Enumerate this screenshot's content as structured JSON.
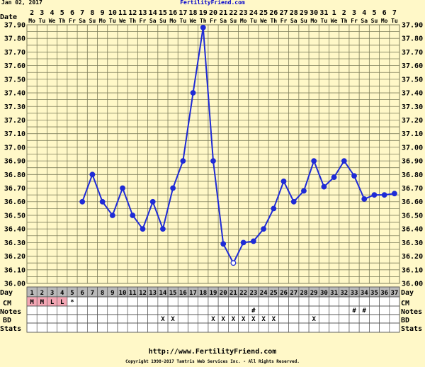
{
  "header": {
    "date_label": "Jan 02, 2017",
    "site_title": "FertilityFriend.com"
  },
  "footer": {
    "url": "http://www.FertilityFriend.com",
    "copyright": "Copyright 1998-2017 Tamtris Web Services Inc. - All Rights Reserved."
  },
  "colors": {
    "background": "#fff8c8",
    "grid": "#7d7d5a",
    "line": "#1f2bd6",
    "pink": "#f4a6b4",
    "dayrow": "#b9b9b9",
    "title": "#0000cc"
  },
  "chart_data": {
    "type": "line",
    "title": "",
    "xlabel": "Day",
    "ylabel": "",
    "row_labels": {
      "date": "Date",
      "day": "Day",
      "cm": "CM",
      "notes": "Notes",
      "bd": "BD",
      "stats": "Stats"
    },
    "dates": [
      "2",
      "3",
      "4",
      "5",
      "6",
      "7",
      "8",
      "9",
      "10",
      "11",
      "12",
      "13",
      "14",
      "15",
      "16",
      "17",
      "18",
      "19",
      "20",
      "21",
      "22",
      "23",
      "24",
      "25",
      "26",
      "27",
      "28",
      "29",
      "30",
      "31",
      "1",
      "2",
      "3",
      "4",
      "5",
      "6",
      "7"
    ],
    "weekdays": [
      "Mo",
      "Tu",
      "We",
      "Th",
      "Fr",
      "Sa",
      "Su",
      "Mo",
      "Tu",
      "We",
      "Th",
      "Fr",
      "Sa",
      "Su",
      "Mo",
      "Tu",
      "We",
      "Th",
      "Fr",
      "Sa",
      "Su",
      "Mo",
      "Tu",
      "We",
      "Th",
      "Fr",
      "Sa",
      "Su",
      "Mo",
      "Tu",
      "We",
      "Th",
      "Fr",
      "Sa",
      "Su",
      "Mo",
      "Tu"
    ],
    "days": [
      1,
      2,
      3,
      4,
      5,
      6,
      7,
      8,
      9,
      10,
      11,
      12,
      13,
      14,
      15,
      16,
      17,
      18,
      19,
      20,
      21,
      22,
      23,
      24,
      25,
      26,
      27,
      28,
      29,
      30,
      31,
      32,
      33,
      34,
      35,
      36,
      37
    ],
    "ylim": [
      36.0,
      37.9
    ],
    "y_ticks": [
      "37.90",
      "37.80",
      "37.70",
      "37.60",
      "37.50",
      "37.40",
      "37.30",
      "37.20",
      "37.10",
      "37.00",
      "36.90",
      "36.80",
      "36.70",
      "36.60",
      "36.50",
      "36.40",
      "36.30",
      "36.20",
      "36.10",
      "36.00"
    ],
    "series": [
      {
        "values": [
          null,
          null,
          null,
          null,
          null,
          36.6,
          36.8,
          36.6,
          36.5,
          36.7,
          36.5,
          36.4,
          36.6,
          36.4,
          36.7,
          36.9,
          37.4,
          37.88,
          36.9,
          36.29,
          36.15,
          36.3,
          36.31,
          36.4,
          36.55,
          36.75,
          36.6,
          36.68,
          36.9,
          36.71,
          36.78,
          36.9,
          36.79,
          36.62,
          36.65,
          36.65,
          36.66
        ]
      }
    ],
    "open_points": [
      21
    ],
    "cm": [
      "M",
      "M",
      "L",
      "L",
      "*",
      "",
      "",
      "",
      "",
      "",
      "",
      "",
      "",
      "",
      "",
      "",
      "",
      "",
      "",
      "",
      "",
      "",
      "",
      "",
      "",
      "",
      "",
      "",
      "",
      "",
      "",
      "",
      "",
      "",
      "",
      "",
      ""
    ],
    "cm_pink_days": [
      1,
      2,
      3,
      4
    ],
    "notes": [
      "",
      "",
      "",
      "",
      "",
      "",
      "",
      "",
      "",
      "",
      "",
      "",
      "",
      "",
      "",
      "",
      "",
      "",
      "",
      "",
      "",
      "",
      "#",
      "",
      "",
      "",
      "",
      "",
      "",
      "",
      "",
      "",
      "#",
      "#",
      "",
      "",
      ""
    ],
    "bd": [
      "",
      "",
      "",
      "",
      "",
      "",
      "",
      "",
      "",
      "",
      "",
      "",
      "",
      "X",
      "X",
      "",
      "",
      "",
      "X",
      "X",
      "X",
      "X",
      "X",
      "X",
      "X",
      "",
      "",
      "",
      "X",
      "",
      "",
      "",
      "",
      "",
      "",
      "",
      ""
    ],
    "stats": [
      "",
      "",
      "",
      "",
      "",
      "",
      "",
      "",
      "",
      "",
      "",
      "",
      "",
      "",
      "",
      "",
      "",
      "",
      "",
      "",
      "",
      "",
      "",
      "",
      "",
      "",
      "",
      "",
      "",
      "",
      "",
      "",
      "",
      "",
      "",
      "",
      ""
    ]
  }
}
